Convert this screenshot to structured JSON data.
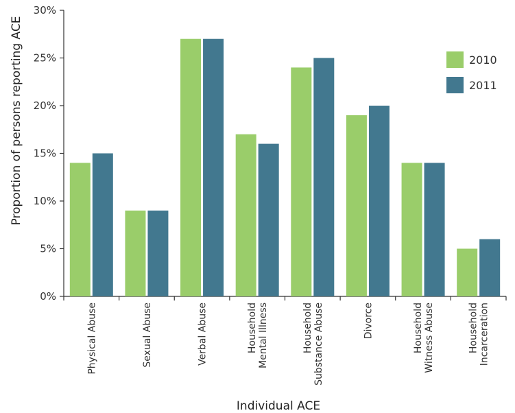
{
  "chart_data": {
    "type": "bar",
    "title": "",
    "xlabel": "Individual ACE",
    "ylabel": "Proportion of persons reporting ACE",
    "ylim": [
      0,
      30
    ],
    "yticks": [
      0,
      5,
      10,
      15,
      20,
      25,
      30
    ],
    "ytick_labels": [
      "0%",
      "5%",
      "10%",
      "15%",
      "20%",
      "25%",
      "30%"
    ],
    "categories": [
      [
        "Physical Abuse"
      ],
      [
        "Sexual Abuse"
      ],
      [
        "Verbal Abuse"
      ],
      [
        "Household",
        "Mental Illness"
      ],
      [
        "Household",
        "Substance Abuse"
      ],
      [
        "Divorce"
      ],
      [
        "Household",
        "Witness Abuse"
      ],
      [
        "Household",
        "Incarceration"
      ]
    ],
    "series": [
      {
        "name": "2010",
        "color": "#9acd6a",
        "values": [
          14,
          9,
          27,
          17,
          24,
          19,
          14,
          5
        ]
      },
      {
        "name": "2011",
        "color": "#42788f",
        "values": [
          15,
          9,
          27,
          16,
          25,
          20,
          14,
          6
        ]
      }
    ],
    "legend_position": "top-right",
    "grid": false
  }
}
